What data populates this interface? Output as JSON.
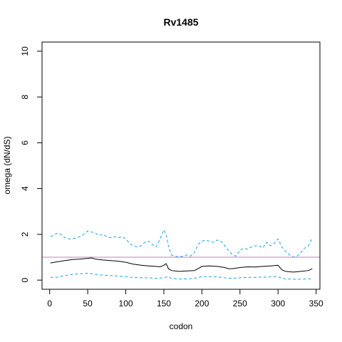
{
  "chart_data": {
    "type": "line",
    "title": "Rv1485",
    "xlabel": "codon",
    "ylabel": "omega (dN/dS)",
    "xlim": [
      -10,
      355
    ],
    "ylim": [
      -0.4,
      10.4
    ],
    "xticks": [
      "0",
      "50",
      "100",
      "150",
      "200",
      "250",
      "300",
      "350"
    ],
    "yticks": [
      "0",
      "2",
      "4",
      "6",
      "8",
      "10"
    ],
    "grid": false,
    "reference_line": {
      "y": 1,
      "color": "#cc79c0"
    },
    "series": [
      {
        "role": "estimate",
        "color": "#000000",
        "style": "solid",
        "x": [
          1,
          10,
          20,
          30,
          40,
          50,
          55,
          60,
          70,
          80,
          90,
          100,
          110,
          120,
          130,
          140,
          145,
          150,
          153,
          156,
          160,
          170,
          180,
          190,
          195,
          200,
          210,
          220,
          230,
          235,
          240,
          250,
          260,
          270,
          280,
          290,
          300,
          305,
          310,
          320,
          330,
          340,
          345
        ],
        "y": [
          0.75,
          0.8,
          0.85,
          0.9,
          0.92,
          0.95,
          0.97,
          0.92,
          0.88,
          0.85,
          0.83,
          0.78,
          0.7,
          0.65,
          0.62,
          0.6,
          0.58,
          0.65,
          0.72,
          0.5,
          0.42,
          0.38,
          0.4,
          0.42,
          0.5,
          0.6,
          0.62,
          0.6,
          0.55,
          0.5,
          0.5,
          0.55,
          0.58,
          0.57,
          0.6,
          0.62,
          0.65,
          0.45,
          0.38,
          0.35,
          0.38,
          0.42,
          0.5
        ]
      },
      {
        "role": "upper-bound",
        "color": "#1ba3e6",
        "style": "dashed",
        "x": [
          1,
          5,
          10,
          15,
          20,
          25,
          30,
          35,
          40,
          45,
          50,
          55,
          60,
          65,
          70,
          75,
          80,
          85,
          90,
          95,
          100,
          105,
          110,
          115,
          120,
          125,
          130,
          135,
          140,
          145,
          150,
          153,
          156,
          160,
          165,
          170,
          175,
          180,
          185,
          190,
          195,
          200,
          205,
          210,
          215,
          220,
          225,
          230,
          235,
          240,
          245,
          250,
          255,
          260,
          265,
          270,
          275,
          280,
          285,
          290,
          295,
          300,
          305,
          310,
          315,
          320,
          325,
          330,
          335,
          340,
          345
        ],
        "y": [
          1.9,
          1.95,
          2.05,
          2.0,
          1.85,
          1.8,
          1.8,
          1.85,
          1.9,
          2.0,
          2.15,
          2.1,
          2.05,
          1.95,
          2.0,
          1.9,
          1.85,
          1.9,
          1.85,
          1.9,
          1.8,
          1.6,
          1.5,
          1.45,
          1.5,
          1.65,
          1.7,
          1.55,
          1.45,
          1.8,
          2.2,
          2.0,
          1.5,
          1.1,
          1.05,
          1.0,
          1.05,
          1.1,
          1.05,
          1.2,
          1.55,
          1.7,
          1.75,
          1.7,
          1.65,
          1.75,
          1.7,
          1.5,
          1.3,
          1.1,
          1.05,
          1.3,
          1.4,
          1.35,
          1.45,
          1.5,
          1.5,
          1.4,
          1.65,
          1.5,
          1.6,
          1.8,
          1.45,
          1.25,
          1.1,
          1.0,
          1.05,
          1.2,
          1.4,
          1.5,
          1.85
        ]
      },
      {
        "role": "lower-bound",
        "color": "#1ba3e6",
        "style": "dashed",
        "x": [
          1,
          10,
          20,
          30,
          40,
          50,
          55,
          60,
          70,
          80,
          90,
          100,
          110,
          120,
          130,
          140,
          150,
          155,
          160,
          170,
          180,
          190,
          200,
          210,
          220,
          230,
          240,
          250,
          260,
          270,
          280,
          290,
          300,
          305,
          310,
          320,
          330,
          340,
          345
        ],
        "y": [
          0.12,
          0.13,
          0.2,
          0.25,
          0.28,
          0.3,
          0.28,
          0.25,
          0.22,
          0.2,
          0.18,
          0.15,
          0.12,
          0.1,
          0.1,
          0.08,
          0.1,
          0.15,
          0.08,
          0.05,
          0.05,
          0.08,
          0.15,
          0.15,
          0.14,
          0.1,
          0.08,
          0.1,
          0.12,
          0.12,
          0.13,
          0.14,
          0.15,
          0.08,
          0.05,
          0.04,
          0.04,
          0.05,
          0.06
        ]
      }
    ]
  }
}
